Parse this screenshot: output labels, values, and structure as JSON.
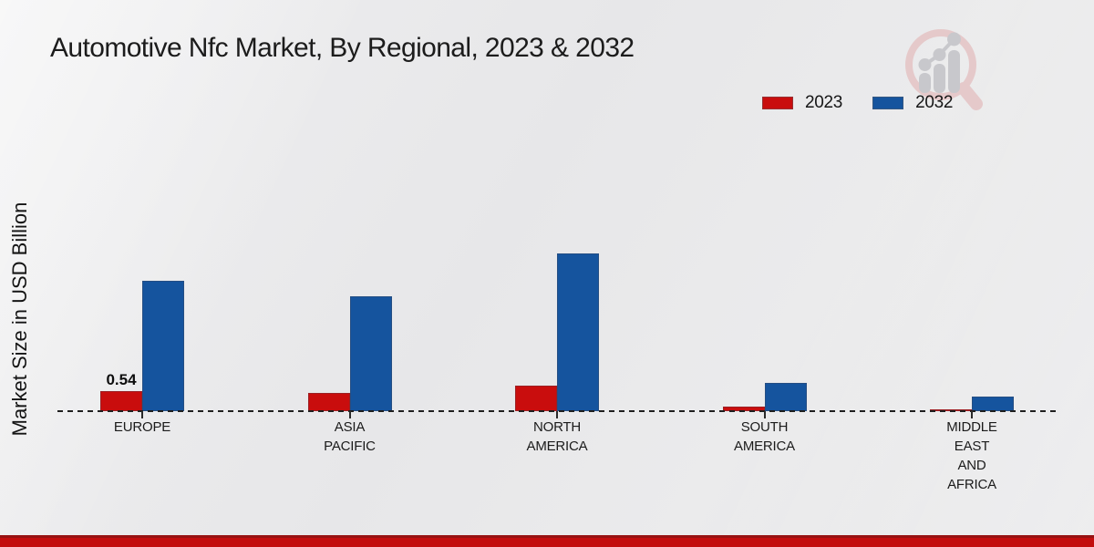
{
  "title": "Automotive Nfc Market, By Regional, 2023 & 2032",
  "y_axis_label": "Market Size in USD Billion",
  "legend": {
    "items": [
      {
        "label": "2023",
        "color": "#c90d0d"
      },
      {
        "label": "2032",
        "color": "#15549e"
      }
    ],
    "position": "top-right"
  },
  "watermark": {
    "name": "magnifier-growth-chart-logo",
    "circle_color": "#e6caca",
    "bars_color": "#c7c7cb"
  },
  "footer": {
    "accent_color": "#c30d0d",
    "accent_line_color": "#971212"
  },
  "chart_data": {
    "type": "bar",
    "title": "Automotive Nfc Market, By Regional, 2023 & 2032",
    "xlabel": "",
    "ylabel": "Market Size in USD Billion",
    "categories": [
      "EUROPE",
      "ASIA\nPACIFIC",
      "NORTH\nAMERICA",
      "SOUTH\nAMERICA",
      "MIDDLE\nEAST\nAND\nAFRICA"
    ],
    "series": [
      {
        "name": "2023",
        "color": "#c90d0d",
        "values": [
          0.54,
          0.49,
          0.68,
          0.12,
          0.06
        ]
      },
      {
        "name": "2032",
        "color": "#15549e",
        "values": [
          3.5,
          3.1,
          4.25,
          0.76,
          0.4
        ]
      }
    ],
    "point_labels": [
      {
        "category_index": 0,
        "series_index": 0,
        "text": "0.54"
      }
    ],
    "ylim": [
      0,
      4.6
    ],
    "grid": false,
    "y_ticks_visible": false,
    "baseline_style": "dashed",
    "legend_position": "top-right"
  }
}
